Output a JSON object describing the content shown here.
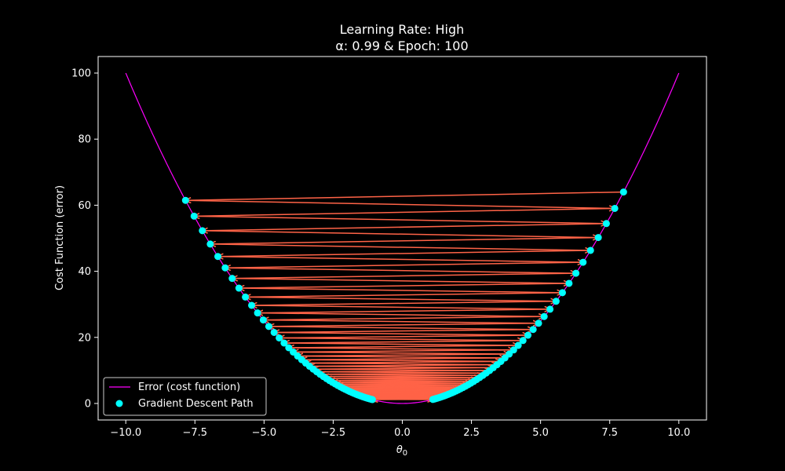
{
  "chart_data": {
    "type": "line",
    "title_line1": "Learning Rate: High",
    "title_line2": "α: 0.99 & Epoch: 100",
    "xlabel_symbol": "θ",
    "xlabel_subscript": "0",
    "ylabel": "Cost Function (error)",
    "xlim": [
      -11,
      11
    ],
    "ylim": [
      -5,
      105
    ],
    "xticks": [
      -10,
      -7.5,
      -5,
      -2.5,
      0,
      2.5,
      5,
      7.5,
      10
    ],
    "xtick_labels": [
      "−10.0",
      "−7.5",
      "−5.0",
      "−2.5",
      "0.0",
      "2.5",
      "5.0",
      "7.5",
      "10.0"
    ],
    "yticks": [
      0,
      20,
      40,
      60,
      80,
      100
    ],
    "ytick_labels": [
      "0",
      "20",
      "40",
      "60",
      "80",
      "100"
    ],
    "grid": false,
    "legend_position": "lower-left",
    "curve": {
      "name": "Error (cost function)",
      "function": "y = x^2",
      "x_range": [
        -10,
        10
      ],
      "color": "#ff00ff"
    },
    "path": {
      "name": "Gradient Descent Path",
      "color": "#00ffff",
      "arrow_color": "#ff6347",
      "start_x": 8.0,
      "alpha": 0.99,
      "epochs": 100,
      "update_rule": "x_next = x - alpha * 2 * x"
    }
  }
}
